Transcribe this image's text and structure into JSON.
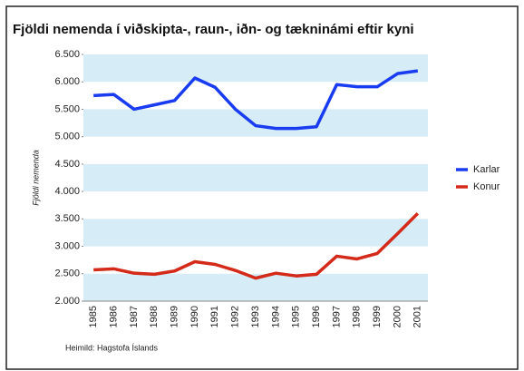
{
  "chart_data": {
    "type": "line",
    "title": "Fjöldi nemenda í viðskipta-, raun-, iðn- og tækninámi eftir kyni",
    "y_label": "Fjöldi nemenda",
    "source": "Heimild: Hagstofa Íslands",
    "categories": [
      "1985",
      "1986",
      "1987",
      "1988",
      "1989",
      "1990",
      "1991",
      "1992",
      "1993",
      "1994",
      "1995",
      "1996",
      "1997",
      "1998",
      "1999",
      "2000",
      "2001"
    ],
    "series": [
      {
        "name": "Karlar",
        "color": "#1a3cf0",
        "values": [
          5750,
          5770,
          5500,
          5580,
          5660,
          6070,
          5900,
          5500,
          5200,
          5150,
          5150,
          5180,
          5950,
          5910,
          5910,
          6150,
          6200
        ]
      },
      {
        "name": "Konur",
        "color": "#d42a1a",
        "values": [
          2570,
          2590,
          2510,
          2490,
          2550,
          2720,
          2670,
          2560,
          2420,
          2510,
          2460,
          2490,
          2820,
          2770,
          2870,
          3230,
          3600
        ]
      }
    ],
    "ylim": [
      2000,
      6500
    ],
    "yticks": [
      {
        "value": 2000,
        "label": "2.000"
      },
      {
        "value": 2500,
        "label": "2.500"
      },
      {
        "value": 3000,
        "label": "3.000"
      },
      {
        "value": 3500,
        "label": "3.500"
      },
      {
        "value": 4000,
        "label": "4.000"
      },
      {
        "value": 4500,
        "label": "4.500"
      },
      {
        "value": 5000,
        "label": "5.000"
      },
      {
        "value": 5500,
        "label": "5.500"
      },
      {
        "value": 6000,
        "label": "6.000"
      },
      {
        "value": 6500,
        "label": "6.500"
      }
    ],
    "bands": true,
    "band_color": "#d6ecf6",
    "legend": "right"
  }
}
